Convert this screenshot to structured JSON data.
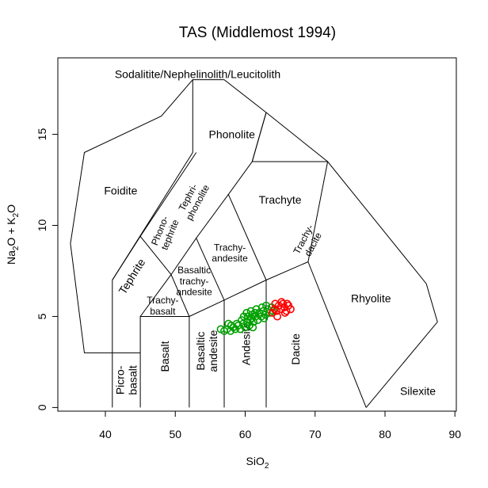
{
  "chart_data": {
    "type": "scatter",
    "title": "TAS (Middlemost 1994)",
    "xlabel_main": "SiO",
    "xlabel_sub": "2",
    "ylabel_parts": [
      {
        "t": "Na",
        "sub": false
      },
      {
        "t": "2",
        "sub": true
      },
      {
        "t": "O + K",
        "sub": false
      },
      {
        "t": "2",
        "sub": true
      },
      {
        "t": "O",
        "sub": false
      }
    ],
    "xlim": [
      33.2,
      90.2
    ],
    "ylim": [
      -0.2,
      19.2
    ],
    "xticks": [
      40,
      50,
      60,
      70,
      80,
      90
    ],
    "yticks": [
      0,
      5,
      10,
      15
    ],
    "grid": false,
    "legend": "none",
    "colors": {
      "series_green": "#00a000",
      "series_red": "#ff0000",
      "lines": "#000000"
    },
    "field_labels": [
      {
        "lines": [
          "Sodalitite/Nephelinolith/Leucitolith"
        ],
        "x": 53.2,
        "y": 18.3,
        "rot": 0,
        "size": 14
      },
      {
        "lines": [
          "Phonolite"
        ],
        "x": 58.1,
        "y": 15.0,
        "rot": 0,
        "size": 14
      },
      {
        "lines": [
          "Foidite"
        ],
        "x": 42.2,
        "y": 11.9,
        "rot": 0,
        "size": 14
      },
      {
        "lines": [
          "Trachyte"
        ],
        "x": 65.0,
        "y": 11.4,
        "rot": 0,
        "size": 14
      },
      {
        "lines": [
          "Tephri-",
          "phonolite"
        ],
        "x": 52.5,
        "y": 11.4,
        "rot": -62,
        "size": 12
      },
      {
        "lines": [
          "Phono-",
          "tephrite"
        ],
        "x": 48.5,
        "y": 9.6,
        "rot": -68,
        "size": 12
      },
      {
        "lines": [
          "Trachy-",
          "dacite"
        ],
        "x": 69.0,
        "y": 9.1,
        "rot": -62,
        "size": 12
      },
      {
        "lines": [
          "Trachy-",
          "andesite"
        ],
        "x": 57.8,
        "y": 8.5,
        "rot": 0,
        "size": 12
      },
      {
        "lines": [
          "Tephrite"
        ],
        "x": 43.8,
        "y": 7.2,
        "rot": -58,
        "size": 14
      },
      {
        "lines": [
          "Basaltic",
          "trachy-",
          "andesite"
        ],
        "x": 52.7,
        "y": 6.95,
        "rot": 0,
        "size": 12
      },
      {
        "lines": [
          "Trachy-",
          "basalt"
        ],
        "x": 48.2,
        "y": 5.6,
        "rot": 0,
        "size": 12
      },
      {
        "lines": [
          "Rhyolite"
        ],
        "x": 78.0,
        "y": 6.0,
        "rot": 0,
        "size": 14
      },
      {
        "lines": [
          "Silexite"
        ],
        "x": 84.7,
        "y": 0.9,
        "rot": 0,
        "size": 14
      },
      {
        "lines": [
          "Dacite"
        ],
        "x": 67.2,
        "y": 3.2,
        "rot": -90,
        "size": 14
      },
      {
        "lines": [
          "Andesite"
        ],
        "x": 60.1,
        "y": 3.5,
        "rot": -90,
        "size": 14
      },
      {
        "lines": [
          "Basaltic",
          "andesite"
        ],
        "x": 54.5,
        "y": 3.1,
        "rot": -90,
        "size": 14
      },
      {
        "lines": [
          "Basalt"
        ],
        "x": 48.5,
        "y": 2.8,
        "rot": -90,
        "size": 14
      },
      {
        "lines": [
          "Picro-",
          "basalt"
        ],
        "x": 43.0,
        "y": 1.5,
        "rot": -90,
        "size": 14
      }
    ],
    "boundaries": [
      [
        [
          41,
          0
        ],
        [
          41,
          3
        ],
        [
          45,
          3
        ]
      ],
      [
        [
          45,
          0
        ],
        [
          45,
          5
        ],
        [
          52,
          5
        ],
        [
          52,
          0
        ]
      ],
      [
        [
          57,
          0
        ],
        [
          57,
          5.9
        ]
      ],
      [
        [
          63,
          0
        ],
        [
          63,
          7
        ]
      ],
      [
        [
          41,
          3
        ],
        [
          41,
          7
        ],
        [
          52.5,
          14
        ]
      ],
      [
        [
          45,
          5
        ],
        [
          49.4,
          7.3
        ],
        [
          53,
          9.3
        ],
        [
          57.6,
          11.7
        ],
        [
          61,
          13.5
        ],
        [
          63,
          16.2
        ]
      ],
      [
        [
          52,
          5
        ],
        [
          57,
          5.9
        ],
        [
          63,
          7
        ],
        [
          69,
          8
        ],
        [
          71.8,
          13.5
        ]
      ],
      [
        [
          49.4,
          7.3
        ],
        [
          52,
          5
        ]
      ],
      [
        [
          53,
          9.3
        ],
        [
          57,
          5.9
        ]
      ],
      [
        [
          57.6,
          11.7
        ],
        [
          63,
          7
        ]
      ],
      [
        [
          61,
          13.5
        ],
        [
          71.8,
          13.5
        ]
      ],
      [
        [
          69,
          8
        ],
        [
          77.3,
          0
        ]
      ],
      [
        [
          45,
          9.4
        ],
        [
          53,
          14
        ]
      ],
      [
        [
          52.5,
          14
        ],
        [
          52.5,
          18
        ],
        [
          57,
          18
        ],
        [
          63,
          16.2
        ],
        [
          71.8,
          13.5
        ],
        [
          85.9,
          6.8
        ],
        [
          87.5,
          4.7
        ],
        [
          77.3,
          0
        ]
      ],
      [
        [
          52.5,
          18
        ],
        [
          48,
          16
        ],
        [
          37,
          14
        ],
        [
          35,
          9
        ],
        [
          37,
          3
        ],
        [
          41,
          3
        ]
      ],
      [
        [
          41,
          7
        ],
        [
          45,
          9.4
        ]
      ],
      [
        [
          63,
          16.2
        ],
        [
          61,
          13.5
        ]
      ],
      [
        [
          49.4,
          7.3
        ],
        [
          45,
          9.4
        ]
      ]
    ],
    "series": [
      {
        "color": "#00a000",
        "points": [
          [
            56.5,
            4.3
          ],
          [
            57.0,
            4.2
          ],
          [
            57.4,
            4.3
          ],
          [
            57.9,
            4.2
          ],
          [
            58.3,
            4.4
          ],
          [
            58.6,
            4.3
          ],
          [
            59.0,
            4.5
          ],
          [
            59.3,
            4.3
          ],
          [
            59.7,
            4.6
          ],
          [
            60.0,
            4.4
          ],
          [
            59.5,
            4.8
          ],
          [
            60.3,
            4.7
          ],
          [
            60.6,
            4.5
          ],
          [
            60.9,
            4.9
          ],
          [
            61.2,
            4.7
          ],
          [
            61.0,
            5.1
          ],
          [
            60.4,
            5.0
          ],
          [
            60.8,
            5.3
          ],
          [
            61.5,
            5.0
          ],
          [
            61.8,
            4.8
          ],
          [
            62.0,
            5.2
          ],
          [
            62.3,
            5.0
          ],
          [
            62.6,
            5.3
          ],
          [
            62.9,
            5.1
          ],
          [
            63.2,
            5.4
          ],
          [
            63.5,
            5.2
          ],
          [
            63.8,
            5.5
          ],
          [
            64.0,
            5.3
          ],
          [
            61.6,
            5.4
          ],
          [
            62.4,
            5.5
          ],
          [
            60.2,
            5.2
          ],
          [
            59.8,
            5.0
          ],
          [
            58.8,
            4.6
          ],
          [
            61.1,
            4.4
          ],
          [
            63.0,
            5.6
          ],
          [
            62.7,
            4.9
          ],
          [
            61.4,
            5.2
          ],
          [
            60.7,
            4.8
          ],
          [
            58.0,
            4.5
          ],
          [
            57.6,
            4.6
          ]
        ]
      },
      {
        "color": "#ff0000",
        "points": [
          [
            63.9,
            5.2
          ],
          [
            64.2,
            5.4
          ],
          [
            64.5,
            5.3
          ],
          [
            64.8,
            5.6
          ],
          [
            65.1,
            5.4
          ],
          [
            65.4,
            5.7
          ],
          [
            65.6,
            5.5
          ],
          [
            65.9,
            5.3
          ],
          [
            66.2,
            5.6
          ],
          [
            66.5,
            5.4
          ],
          [
            64.6,
            5.0
          ],
          [
            65.2,
            5.8
          ],
          [
            64.3,
            5.7
          ],
          [
            65.7,
            5.2
          ],
          [
            66.0,
            5.7
          ]
        ]
      }
    ]
  }
}
